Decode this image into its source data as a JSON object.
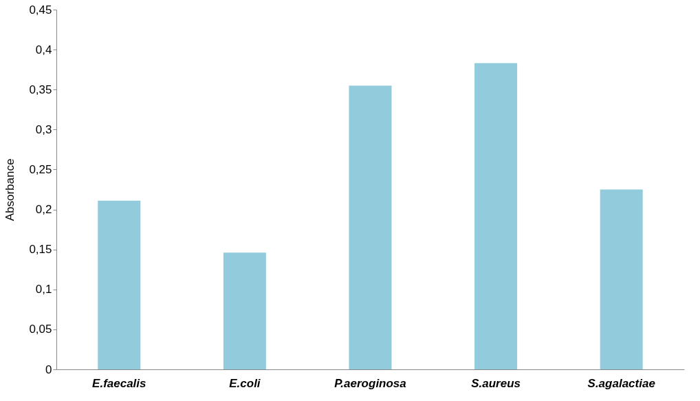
{
  "chart_data": {
    "type": "bar",
    "ylabel": "Absorbance",
    "categories": [
      "E.faecalis",
      "E.coli",
      "P.aeroginosa",
      "S.aureus",
      "S.agalactiae"
    ],
    "values": [
      0.211,
      0.146,
      0.355,
      0.383,
      0.225
    ],
    "color": "#92cbdc",
    "ylim": [
      0,
      0.45
    ],
    "yticks": [
      0,
      {
        "value": 0.05,
        "label": "0,05"
      },
      {
        "value": 0.1,
        "label": "0,1"
      },
      {
        "value": 0.15,
        "label": "0,15"
      },
      {
        "value": 0.2,
        "label": "0,2"
      },
      {
        "value": 0.25,
        "label": "0,25"
      },
      {
        "value": 0.3,
        "label": "0,3"
      },
      {
        "value": 0.35,
        "label": "0,35"
      },
      {
        "value": 0.4,
        "label": "0,4"
      },
      {
        "value": 0.45,
        "label": "0,45"
      }
    ],
    "grid": false
  }
}
